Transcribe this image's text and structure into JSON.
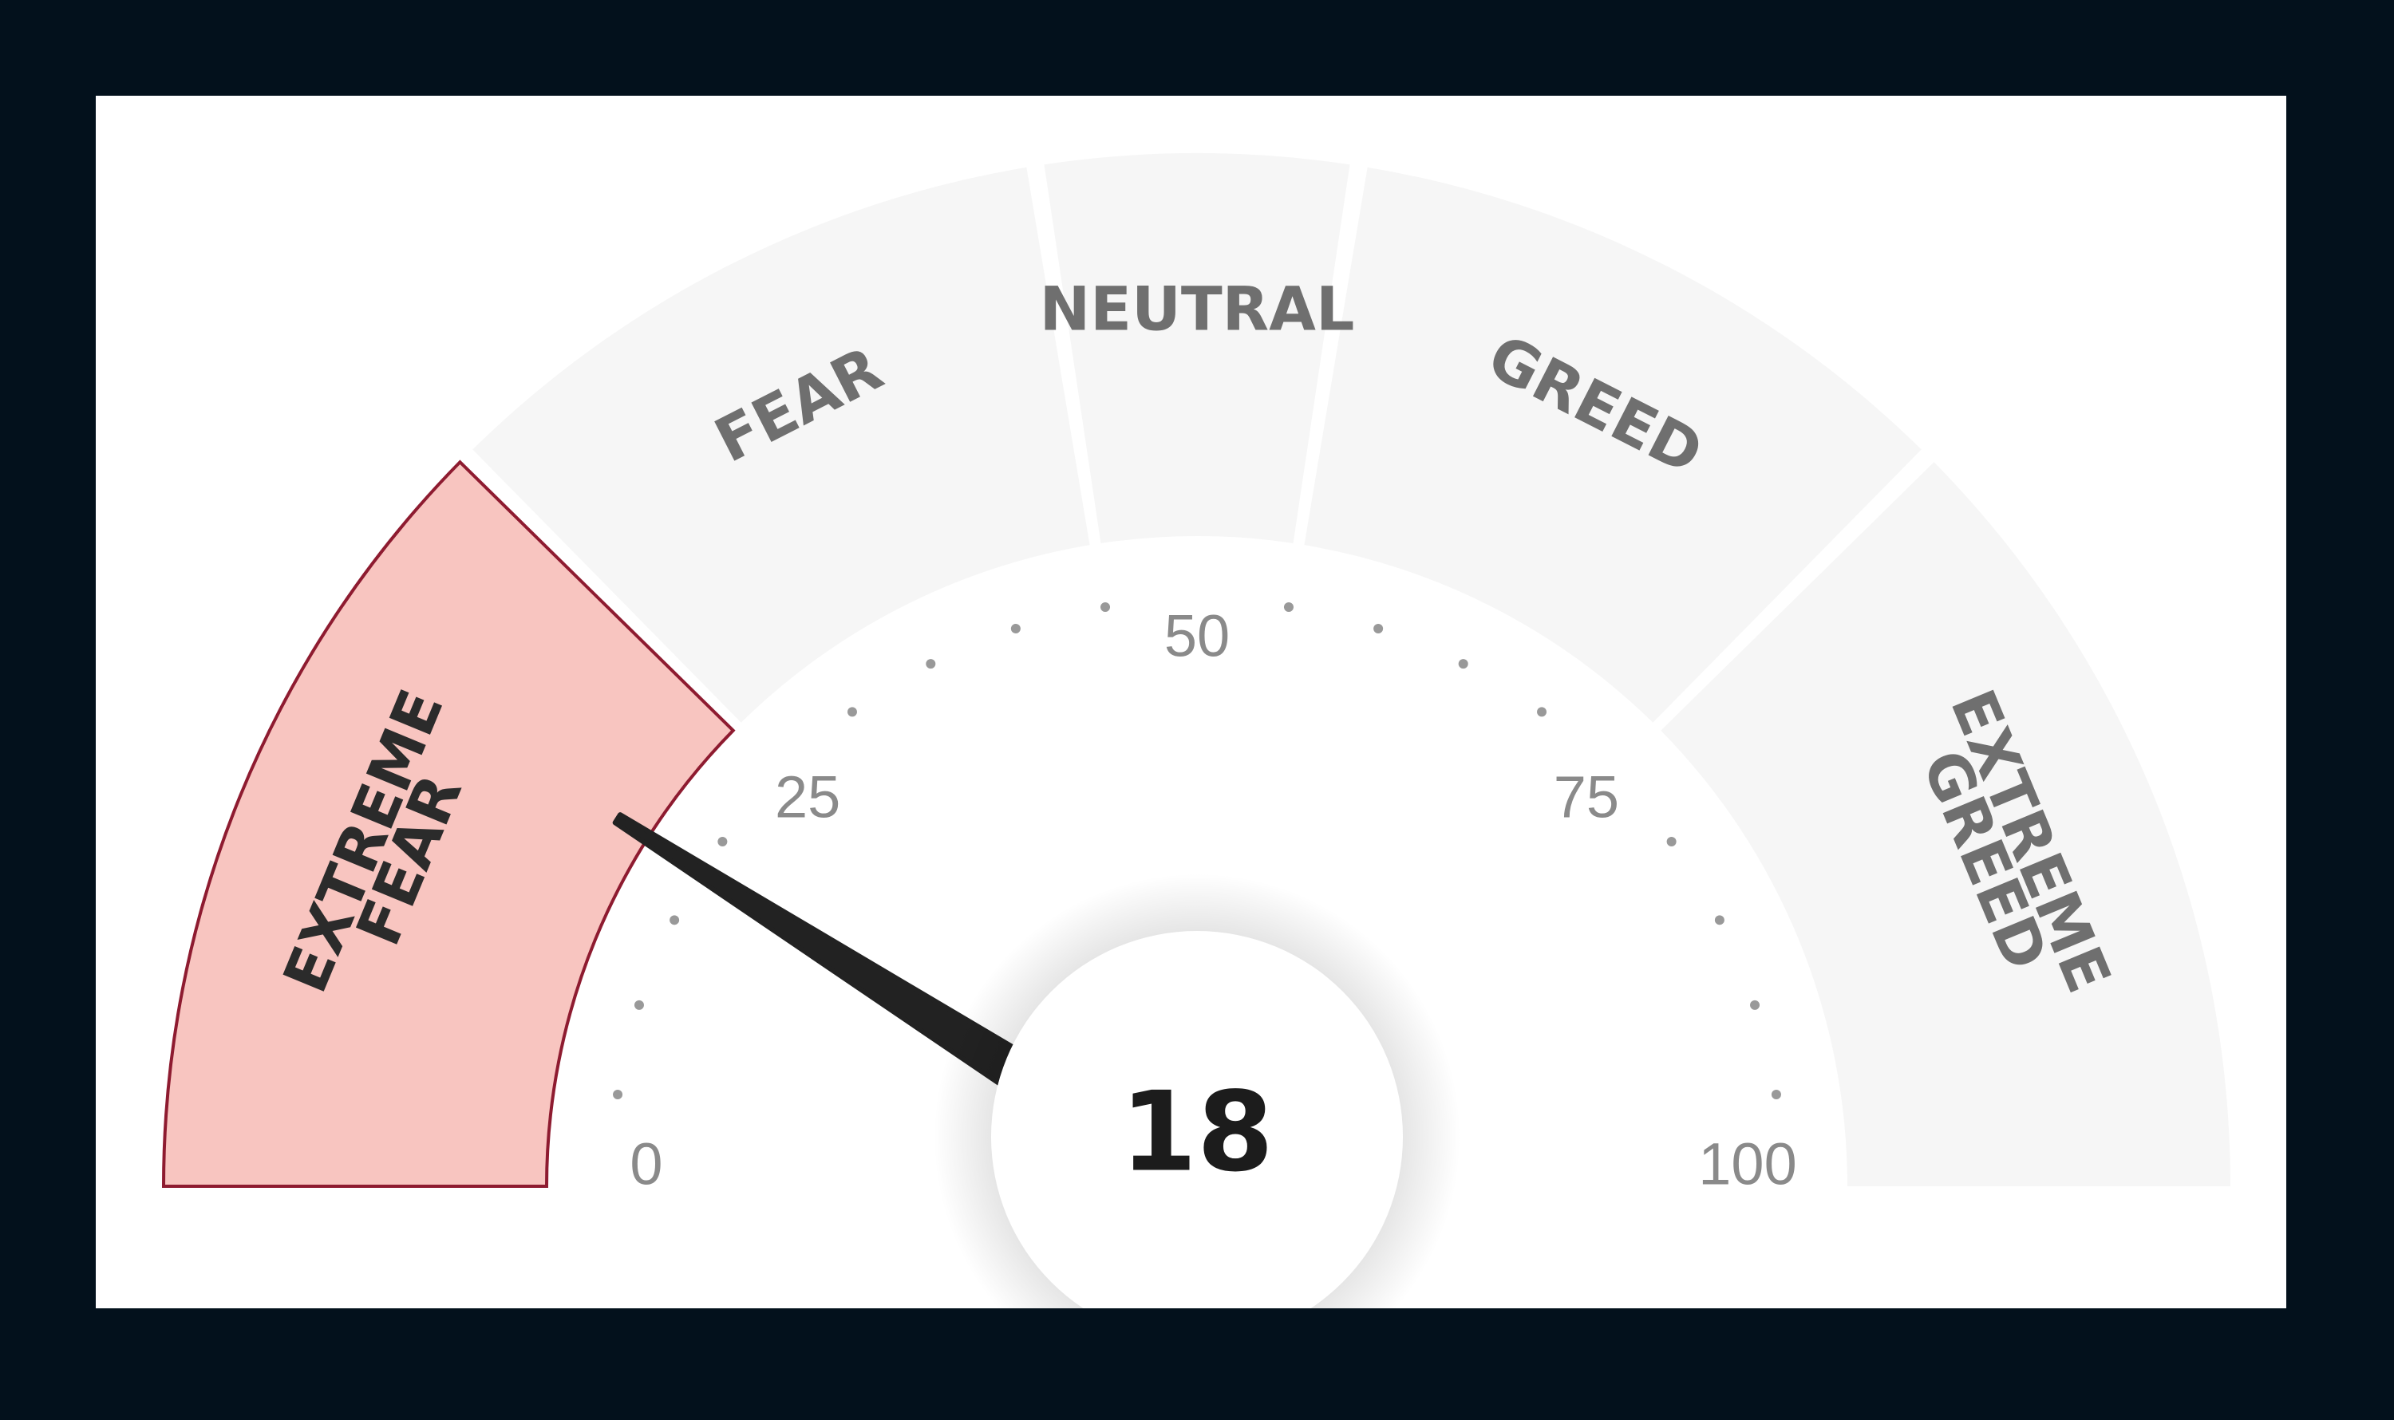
{
  "chart_data": {
    "type": "gauge",
    "value": 18,
    "range": [
      0,
      100
    ],
    "segments": [
      {
        "label": [
          "EXTREME",
          "FEAR"
        ],
        "from": 0,
        "to": 25,
        "active": true
      },
      {
        "label": [
          "FEAR"
        ],
        "from": 25,
        "to": 45,
        "active": false
      },
      {
        "label": [
          "NEUTRAL"
        ],
        "from": 45,
        "to": 55,
        "active": false
      },
      {
        "label": [
          "GREED"
        ],
        "from": 55,
        "to": 75,
        "active": false
      },
      {
        "label": [
          "EXTREME",
          "GREED"
        ],
        "from": 75,
        "to": 100,
        "active": false
      }
    ],
    "tick_labels": [
      {
        "value": 0,
        "text": "0"
      },
      {
        "value": 25,
        "text": "25"
      },
      {
        "value": 50,
        "text": "50"
      },
      {
        "value": 75,
        "text": "75"
      },
      {
        "value": 100,
        "text": "100"
      }
    ],
    "dot_step": 5,
    "score_text": "18"
  },
  "colors": {
    "frame": "#03111c",
    "panel": "#ffffff",
    "segment_inactive": "#f6f6f6",
    "segment_active_fill": "#f8c5c0",
    "segment_active_stroke": "#8e1b30",
    "label_inactive": "#6f6f6f",
    "label_active": "#2b2b2b",
    "tick_text": "#8a8a8a",
    "needle": "#222222",
    "score": "#1c1c1c"
  }
}
